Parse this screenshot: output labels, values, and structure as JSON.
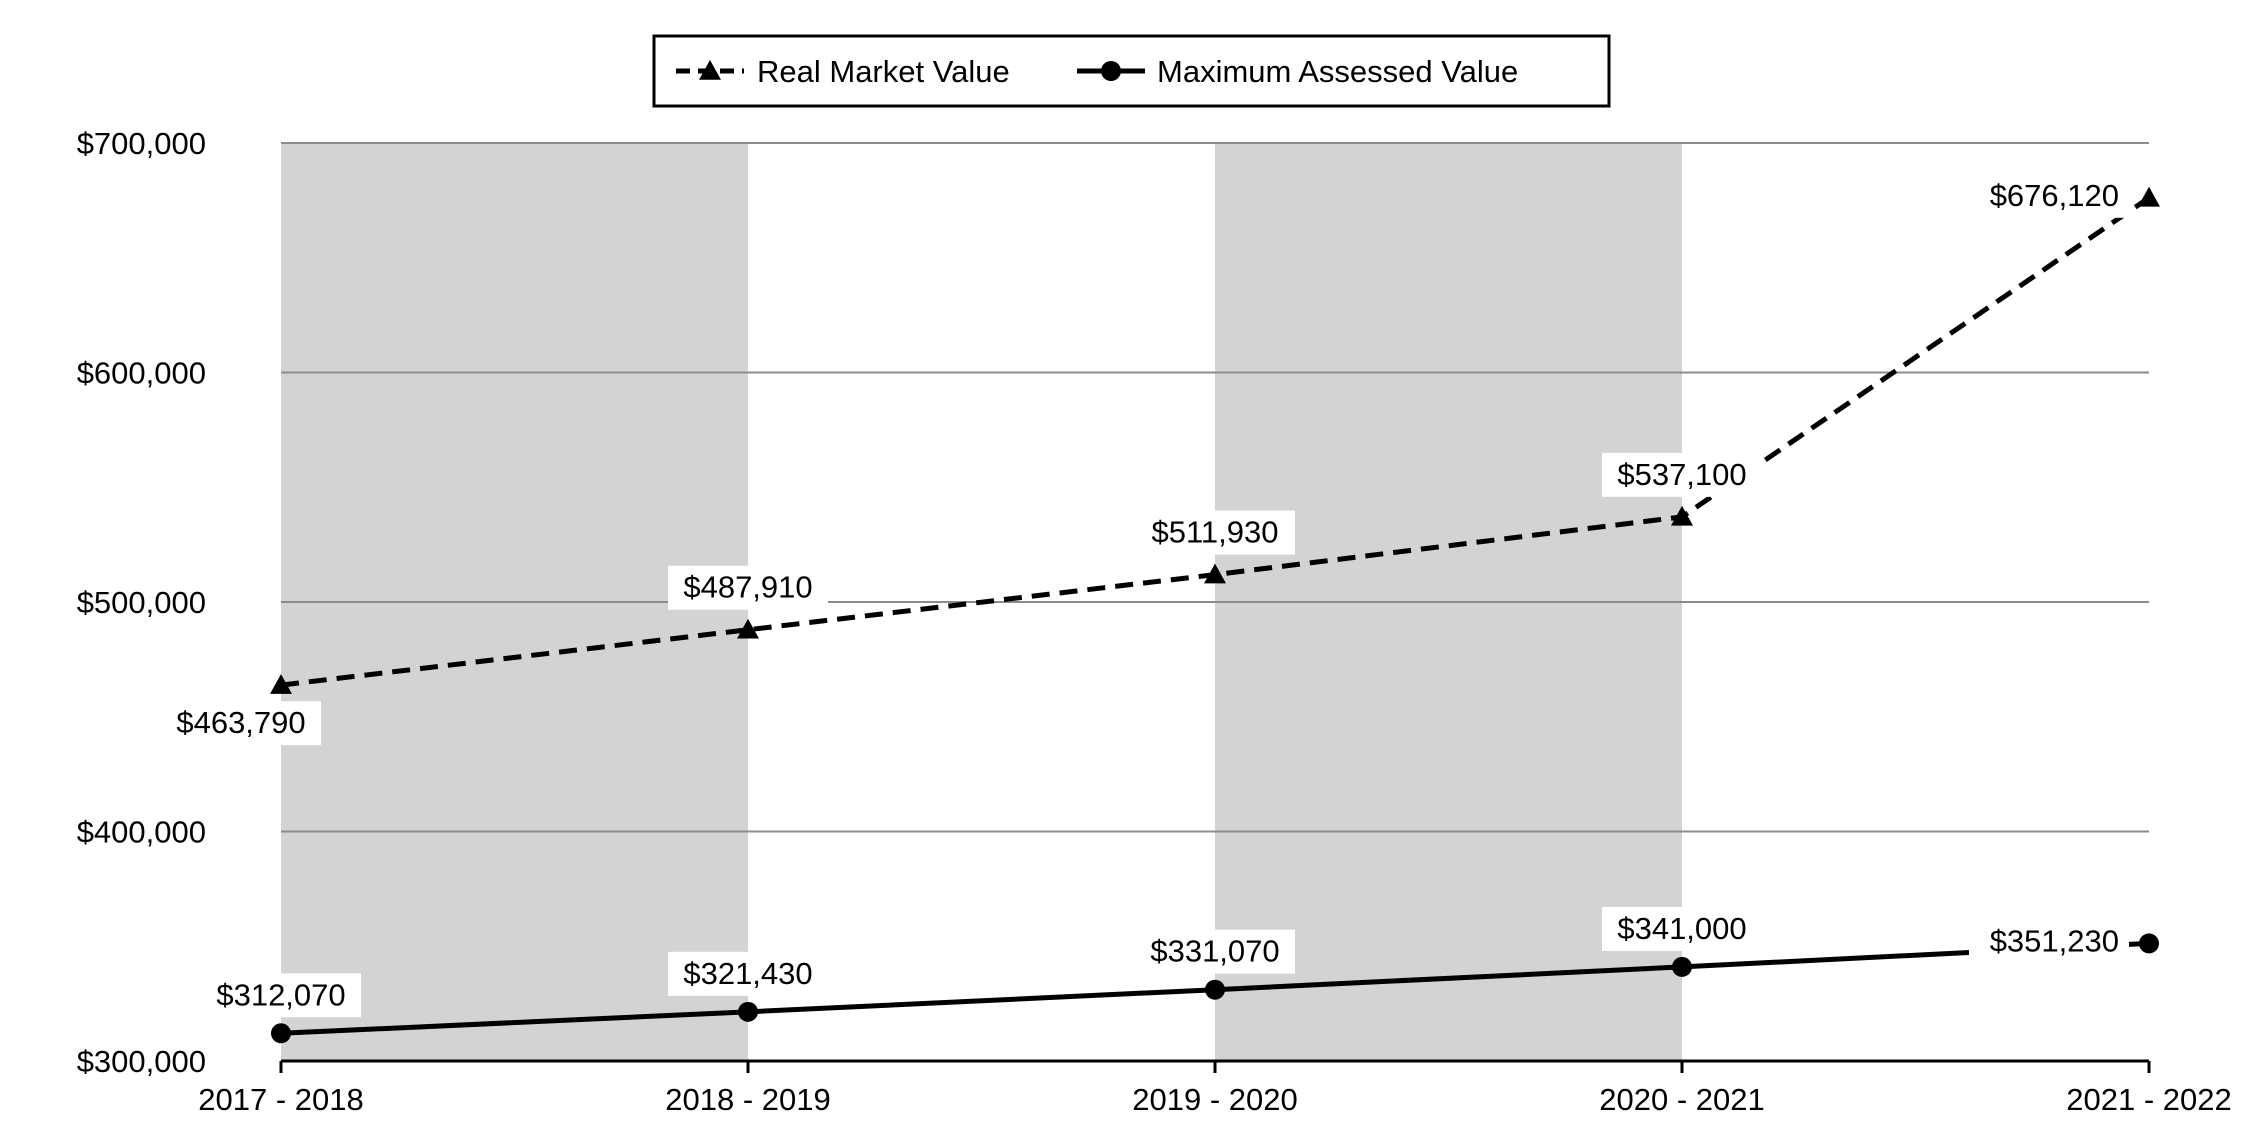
{
  "chart_data": {
    "type": "line",
    "categories": [
      "2017 - 2018",
      "2018 - 2019",
      "2019 - 2020",
      "2020 - 2021",
      "2021 - 2022"
    ],
    "ylim": [
      300000,
      700000
    ],
    "yticks": [
      300000,
      400000,
      500000,
      600000,
      700000
    ],
    "ytick_labels": [
      "$300,000",
      "$400,000",
      "$500,000",
      "$600,000",
      "$700,000"
    ],
    "grid": true,
    "shaded_columns": [
      0,
      2
    ],
    "legend_position": "top-center",
    "series": [
      {
        "name": "Real Market Value",
        "values": [
          463790,
          487910,
          511930,
          537100,
          676120
        ],
        "labels": [
          "$463,790",
          "$487,910",
          "$511,930",
          "$537,100",
          "$676,120"
        ],
        "style": "dashed",
        "marker": "triangle",
        "color": "#000000"
      },
      {
        "name": "Maximum Assessed Value",
        "values": [
          312070,
          321430,
          331070,
          341000,
          351230
        ],
        "labels": [
          "$312,070",
          "$321,430",
          "$331,070",
          "$341,000",
          "$351,230"
        ],
        "style": "solid",
        "marker": "circle",
        "color": "#000000"
      }
    ],
    "band_color": "#d3d3d3",
    "grid_color": "#8c8c8c"
  }
}
